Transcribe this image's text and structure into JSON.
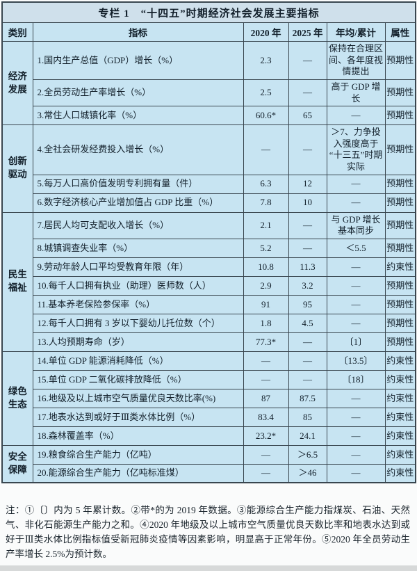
{
  "colors": {
    "cell_bg": "#c7e4f2",
    "title_bg": "#cfe0eb",
    "border": "#39464f",
    "text": "#121f2a"
  },
  "chart_data": {
    "type": "table",
    "title": "专栏 1　“十四五”时期经济社会发展主要指标",
    "columns": [
      "类别",
      "指标",
      "2020 年",
      "2025 年",
      "年均/累计",
      "属性"
    ],
    "groups": [
      {
        "category": "经济发展",
        "rows": [
          {
            "indicator": "1.国内生产总值（GDP）增长（%）",
            "y2020": "2.3",
            "y2025": "—",
            "annual": "保持在合理区间、各年度视情提出",
            "attribute": "预期性"
          },
          {
            "indicator": "2.全员劳动生产率增长（%）",
            "y2020": "2.5",
            "y2025": "—",
            "annual": "高于 GDP 增长",
            "attribute": "预期性"
          },
          {
            "indicator": "3.常住人口城镇化率（%）",
            "y2020": "60.6*",
            "y2025": "65",
            "annual": "—",
            "attribute": "预期性"
          }
        ]
      },
      {
        "category": "创新驱动",
        "rows": [
          {
            "indicator": "4.全社会研发经费投入增长（%）",
            "y2020": "—",
            "y2025": "—",
            "annual": "＞7、力争投入强度高于“十三五”时期实际",
            "attribute": "预期性"
          },
          {
            "indicator": "5.每万人口高价值发明专利拥有量（件）",
            "y2020": "6.3",
            "y2025": "12",
            "annual": "—",
            "attribute": "预期性"
          },
          {
            "indicator": "6.数字经济核心产业增加值占 GDP 比重（%）",
            "y2020": "7.8",
            "y2025": "10",
            "annual": "—",
            "attribute": "预期性"
          }
        ]
      },
      {
        "category": "民生福祉",
        "rows": [
          {
            "indicator": "7.居民人均可支配收入增长（%）",
            "y2020": "2.1",
            "y2025": "—",
            "annual": "与 GDP 增长基本同步",
            "attribute": "预期性"
          },
          {
            "indicator": "8.城镇调查失业率（%）",
            "y2020": "5.2",
            "y2025": "—",
            "annual": "＜5.5",
            "attribute": "预期性"
          },
          {
            "indicator": "9.劳动年龄人口平均受教育年限（年）",
            "y2020": "10.8",
            "y2025": "11.3",
            "annual": "—",
            "attribute": "约束性"
          },
          {
            "indicator": "10.每千人口拥有执业（助理）医师数（人）",
            "y2020": "2.9",
            "y2025": "3.2",
            "annual": "—",
            "attribute": "预期性"
          },
          {
            "indicator": "11.基本养老保险参保率（%）",
            "y2020": "91",
            "y2025": "95",
            "annual": "—",
            "attribute": "预期性"
          },
          {
            "indicator": "12.每千人口拥有 3 岁以下婴幼儿托位数（个）",
            "y2020": "1.8",
            "y2025": "4.5",
            "annual": "—",
            "attribute": "预期性"
          },
          {
            "indicator": "13.人均预期寿命（岁）",
            "y2020": "77.3*",
            "y2025": "—",
            "annual": "〔1〕",
            "attribute": "预期性"
          }
        ]
      },
      {
        "category": "绿色生态",
        "rows": [
          {
            "indicator": "14.单位 GDP 能源消耗降低（%）",
            "y2020": "—",
            "y2025": "—",
            "annual": "〔13.5〕",
            "attribute": "约束性"
          },
          {
            "indicator": "15.单位 GDP 二氧化碳排放降低（%）",
            "y2020": "—",
            "y2025": "—",
            "annual": "〔18〕",
            "attribute": "约束性"
          },
          {
            "indicator": "16.地级及以上城市空气质量优良天数比率(%)",
            "y2020": "87",
            "y2025": "87.5",
            "annual": "—",
            "attribute": "约束性"
          },
          {
            "indicator": "17.地表水达到或好于Ⅲ类水体比例（%）",
            "y2020": "83.4",
            "y2025": "85",
            "annual": "—",
            "attribute": "约束性"
          },
          {
            "indicator": "18.森林覆盖率（%）",
            "y2020": "23.2*",
            "y2025": "24.1",
            "annual": "—",
            "attribute": "约束性"
          }
        ]
      },
      {
        "category": "安全保障",
        "rows": [
          {
            "indicator": "19.粮食综合生产能力（亿吨）",
            "y2020": "—",
            "y2025": "＞6.5",
            "annual": "—",
            "attribute": "约束性"
          },
          {
            "indicator": "20.能源综合生产能力（亿吨标准煤）",
            "y2020": "—",
            "y2025": "＞46",
            "annual": "—",
            "attribute": "约束性"
          }
        ]
      }
    ],
    "notes": "注：①〔〕内为 5 年累计数。②带*的为 2019 年数据。③能源综合生产能力指煤炭、石油、天然气、非化石能源生产能力之和。④2020 年地级及以上城市空气质量优良天数比率和地表水达到或好于Ⅲ类水体比例指标值受新冠肺炎疫情等因素影响，明显高于正常年份。⑤2020 年全员劳动生产率增长 2.5%为预计数。"
  }
}
